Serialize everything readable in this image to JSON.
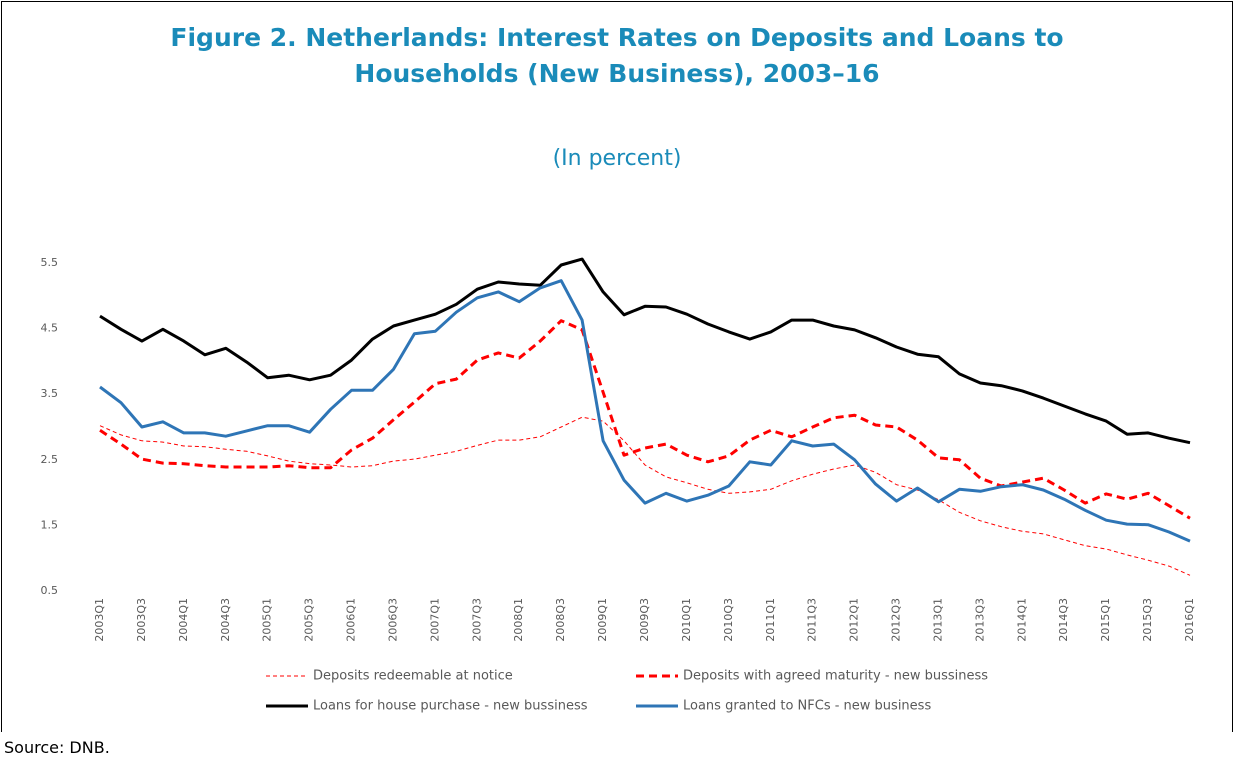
{
  "chart_data": {
    "type": "line",
    "title": "Figure 2. Netherlands: Interest Rates on Deposits and Loans to Households (New Business), 2003–16",
    "subtitle": "(In percent)",
    "source": "Source: DNB.",
    "categories": [
      "2003Q1",
      null,
      "2003Q3",
      null,
      "2004Q1",
      null,
      "2004Q3",
      null,
      "2005Q1",
      null,
      "2005Q3",
      null,
      "2006Q1",
      null,
      "2006Q3",
      null,
      "2007Q1",
      null,
      "2007Q3",
      null,
      "2008Q1",
      null,
      "2008Q3",
      null,
      "2009Q1",
      null,
      "2009Q3",
      null,
      "2010Q1",
      null,
      "2010Q3",
      null,
      "2011Q1",
      null,
      "2011Q3",
      null,
      "2012Q1",
      null,
      "2012Q3",
      null,
      "2013Q1",
      null,
      "2013Q3",
      null,
      "2014Q1",
      null,
      "2014Q3",
      null,
      "2015Q1",
      null,
      "2015Q3",
      null,
      "2016Q1"
    ],
    "ylim": [
      0.5,
      5.8
    ],
    "yticks": [
      0.5,
      1.5,
      2.5,
      3.5,
      4.5,
      5.5
    ],
    "grid": false,
    "series": [
      {
        "name": "Deposits redeemable at notice",
        "color": "#ff0000",
        "line_style": "dashed",
        "weight": "thin",
        "values": [
          3.02,
          2.88,
          2.79,
          2.77,
          2.71,
          2.7,
          2.66,
          2.63,
          2.56,
          2.48,
          2.44,
          2.42,
          2.39,
          2.41,
          2.48,
          2.51,
          2.57,
          2.63,
          2.72,
          2.8,
          2.8,
          2.85,
          3.0,
          3.15,
          3.09,
          2.79,
          2.42,
          2.24,
          2.15,
          2.05,
          1.99,
          2.01,
          2.05,
          2.18,
          2.28,
          2.36,
          2.42,
          2.31,
          2.12,
          2.04,
          1.89,
          1.7,
          1.57,
          1.48,
          1.41,
          1.37,
          1.28,
          1.19,
          1.14,
          1.05,
          0.97,
          0.88,
          0.74
        ]
      },
      {
        "name": "Deposits with agreed maturity - new bussiness",
        "color": "#ff0000",
        "line_style": "dashed",
        "weight": "thick",
        "values": [
          2.95,
          2.74,
          2.51,
          2.45,
          2.44,
          2.41,
          2.39,
          2.39,
          2.39,
          2.41,
          2.38,
          2.38,
          2.65,
          2.83,
          3.11,
          3.38,
          3.66,
          3.73,
          4.02,
          4.13,
          4.05,
          4.31,
          4.62,
          4.48,
          3.53,
          2.57,
          2.68,
          2.74,
          2.57,
          2.47,
          2.56,
          2.8,
          2.95,
          2.85,
          3.0,
          3.14,
          3.18,
          3.03,
          3.0,
          2.8,
          2.53,
          2.5,
          2.22,
          2.1,
          2.16,
          2.22,
          2.04,
          1.84,
          1.98,
          1.9,
          1.99,
          1.8,
          1.61
        ]
      },
      {
        "name": "Loans for house purchase - new bussiness",
        "color": "#000000",
        "line_style": "solid",
        "weight": "thick",
        "values": [
          4.69,
          4.49,
          4.31,
          4.49,
          4.31,
          4.1,
          4.2,
          3.99,
          3.75,
          3.79,
          3.72,
          3.79,
          4.02,
          4.34,
          4.54,
          4.63,
          4.72,
          4.87,
          5.1,
          5.21,
          5.18,
          5.16,
          5.47,
          5.56,
          5.06,
          4.71,
          4.84,
          4.83,
          4.72,
          4.57,
          4.45,
          4.34,
          4.45,
          4.63,
          4.63,
          4.54,
          4.48,
          4.36,
          4.22,
          4.11,
          4.07,
          3.81,
          3.67,
          3.63,
          3.55,
          3.44,
          3.32,
          3.2,
          3.09,
          2.89,
          2.91,
          2.83,
          2.76
        ]
      },
      {
        "name": "Loans granted to NFCs - new business",
        "color": "#2e75b6",
        "line_style": "solid",
        "weight": "thick",
        "values": [
          3.61,
          3.37,
          3.0,
          3.08,
          2.91,
          2.91,
          2.86,
          2.94,
          3.02,
          3.02,
          2.92,
          3.27,
          3.56,
          3.56,
          3.88,
          4.42,
          4.46,
          4.75,
          4.97,
          5.06,
          4.91,
          5.12,
          5.23,
          4.63,
          2.79,
          2.19,
          1.84,
          1.99,
          1.87,
          1.96,
          2.1,
          2.47,
          2.42,
          2.79,
          2.71,
          2.74,
          2.5,
          2.13,
          1.87,
          2.07,
          1.86,
          2.05,
          2.02,
          2.09,
          2.12,
          2.04,
          1.9,
          1.73,
          1.58,
          1.52,
          1.51,
          1.4,
          1.26
        ]
      }
    ]
  }
}
